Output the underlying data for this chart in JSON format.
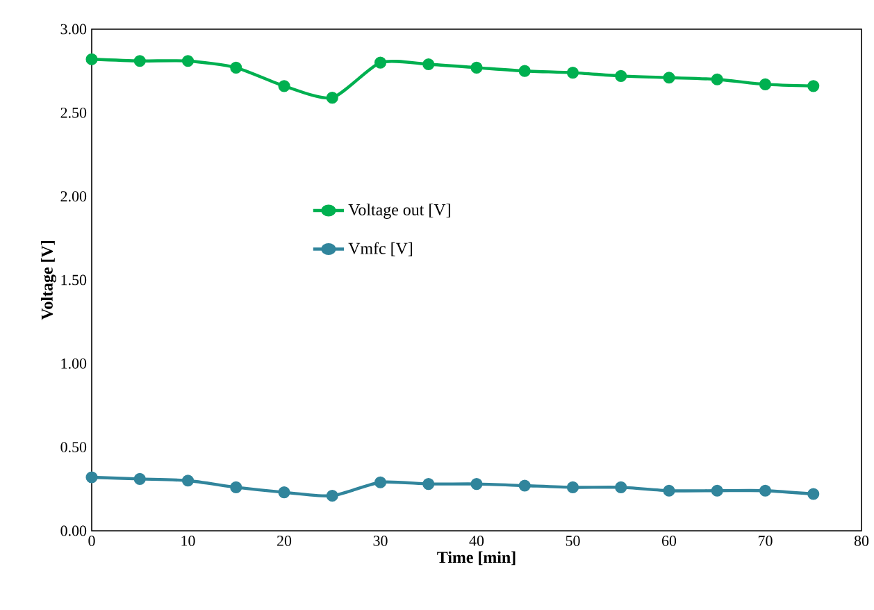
{
  "chart_data": {
    "type": "line",
    "xlabel": "Time [min]",
    "ylabel": "Voltage [V]",
    "x": [
      0,
      5,
      10,
      15,
      20,
      25,
      30,
      35,
      40,
      45,
      50,
      55,
      60,
      65,
      70,
      75
    ],
    "series": [
      {
        "name": "Voltage out [V]",
        "color": "#00b050",
        "values": [
          2.82,
          2.81,
          2.81,
          2.77,
          2.66,
          2.59,
          2.8,
          2.79,
          2.77,
          2.75,
          2.74,
          2.72,
          2.71,
          2.7,
          2.67,
          2.66
        ]
      },
      {
        "name": "Vmfc [V]",
        "color": "#31859c",
        "values": [
          0.32,
          0.31,
          0.3,
          0.26,
          0.23,
          0.21,
          0.29,
          0.28,
          0.28,
          0.27,
          0.26,
          0.26,
          0.24,
          0.24,
          0.24,
          0.22
        ]
      }
    ],
    "xlim": [
      0,
      80
    ],
    "xticks": [
      0,
      10,
      20,
      30,
      40,
      50,
      60,
      70,
      80
    ],
    "ylim": [
      0,
      3
    ],
    "yticks": [
      {
        "value": 0,
        "label": "0.00"
      },
      {
        "value": 0.5,
        "label": "0.50"
      },
      {
        "value": 1,
        "label": "1.00"
      },
      {
        "value": 1.5,
        "label": "1.50"
      },
      {
        "value": 2,
        "label": "2.00"
      },
      {
        "value": 2.5,
        "label": "2.50"
      },
      {
        "value": 3,
        "label": "3.00"
      }
    ],
    "grid": false,
    "legend": "center left",
    "marker": "circle",
    "line_style": "solid"
  }
}
